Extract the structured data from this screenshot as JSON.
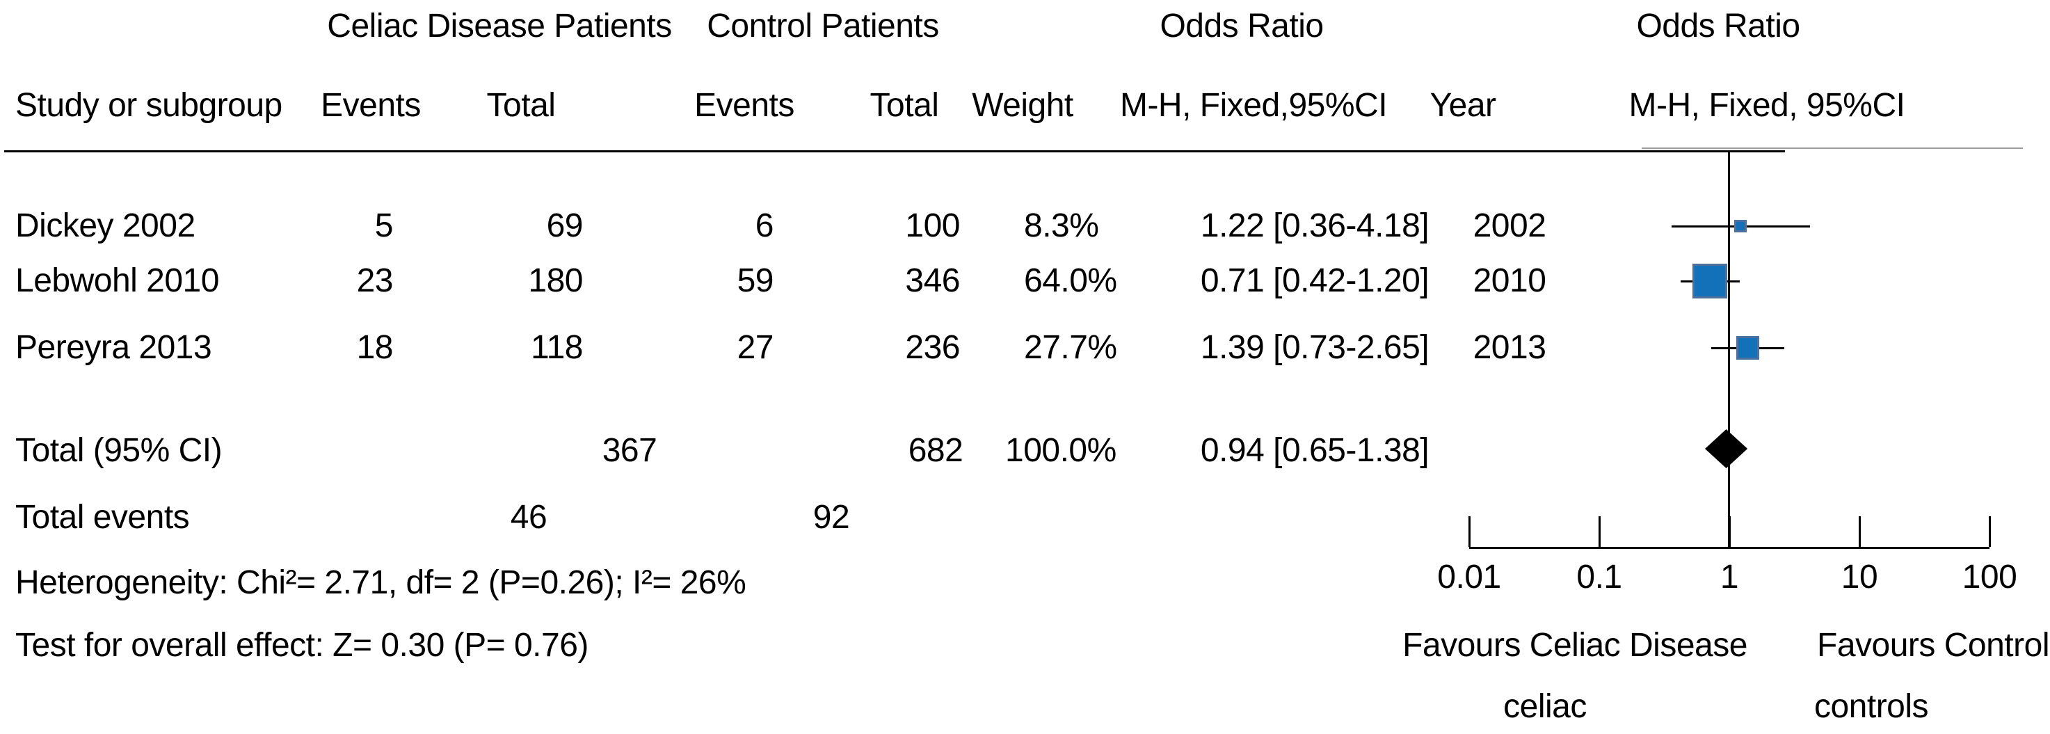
{
  "headers": {
    "group_exp": "Celiac Disease Patients",
    "group_ctrl": "Control Patients",
    "or_left_title": "Odds Ratio",
    "or_right_title": "Odds Ratio",
    "study": "Study or subgroup",
    "events": "Events",
    "total": "Total",
    "weight": "Weight",
    "mh_left": "M-H, Fixed,95%CI",
    "year": "Year",
    "mh_right": "M-H, Fixed, 95%CI"
  },
  "chart_data": {
    "type": "forest",
    "x_scale": "log",
    "x_ticks": [
      "0.01",
      "0.1",
      "1",
      "10",
      "100"
    ],
    "x_tick_values": [
      0.01,
      0.1,
      1,
      10,
      100
    ],
    "x_range": [
      0.01,
      100
    ],
    "reference_line": 1,
    "marker_color": "#1271b8",
    "marker_border_color": "#4d719c",
    "diamond_color": "#000000",
    "studies": [
      {
        "name": "Dickey 2002",
        "events_exp": "5",
        "total_exp": "69",
        "events_ctrl": "6",
        "total_ctrl": "100",
        "weight": "8.3%",
        "weight_value": 8.3,
        "or": 1.22,
        "ci_low": 0.36,
        "ci_high": 4.18,
        "or_ci_label": "1.22 [0.36-4.18]",
        "year": "2002"
      },
      {
        "name": "Lebwohl 2010",
        "events_exp": "23",
        "total_exp": "180",
        "events_ctrl": "59",
        "total_ctrl": "346",
        "weight": "64.0%",
        "weight_value": 64.0,
        "or": 0.71,
        "ci_low": 0.42,
        "ci_high": 1.2,
        "or_ci_label": "0.71 [0.42-1.20]",
        "year": "2010"
      },
      {
        "name": "Pereyra 2013",
        "events_exp": "18",
        "total_exp": "118",
        "events_ctrl": "27",
        "total_ctrl": "236",
        "weight": "27.7%",
        "weight_value": 27.7,
        "or": 1.39,
        "ci_low": 0.73,
        "ci_high": 2.65,
        "or_ci_label": "1.39 [0.73-2.65]",
        "year": "2013"
      }
    ],
    "total": {
      "label": "Total (95% CI)",
      "total_exp": "367",
      "total_ctrl": "682",
      "weight": "100.0%",
      "or": 0.94,
      "ci_low": 0.65,
      "ci_high": 1.38,
      "or_ci_label": "0.94 [0.65-1.38]"
    },
    "total_events": {
      "label": "Total events",
      "events_exp": "46",
      "events_ctrl": "92"
    },
    "heterogeneity": "Heterogeneity: Chi²= 2.71, df= 2 (P=0.26); I²= 26%",
    "overall_effect": "Test for overall effect: Z= 0.30 (P= 0.76)",
    "favours_left_line1": "Favours Celiac Disease",
    "favours_left_line2": "celiac",
    "favours_right_line1": "Favours Control",
    "favours_right_line2": "controls"
  }
}
